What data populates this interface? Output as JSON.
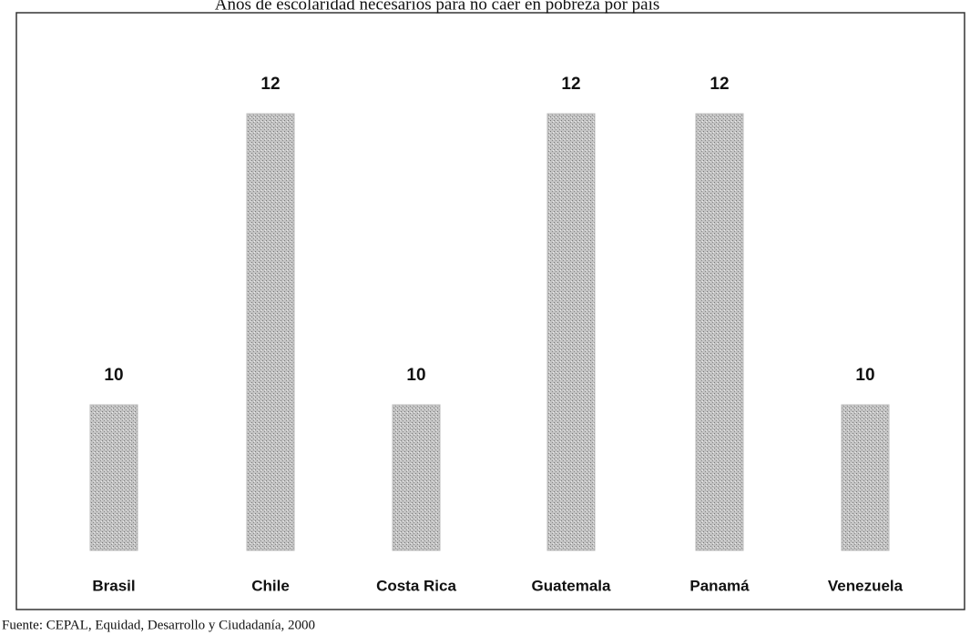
{
  "chart_data": {
    "type": "bar",
    "title": "Años de escolaridad necesarios para no caer en pobreza por país",
    "categories": [
      "Brasil",
      "Chile",
      "Costa Rica",
      "Guatemala",
      "Panamá",
      "Venezuela"
    ],
    "values": [
      10,
      12,
      10,
      12,
      12,
      10
    ],
    "color": "#b8b8b8",
    "ylim": [
      9,
      12.1
    ],
    "source": "Fuente: CEPAL, Equidad, Desarrollo y Ciudadanía, 2000"
  }
}
